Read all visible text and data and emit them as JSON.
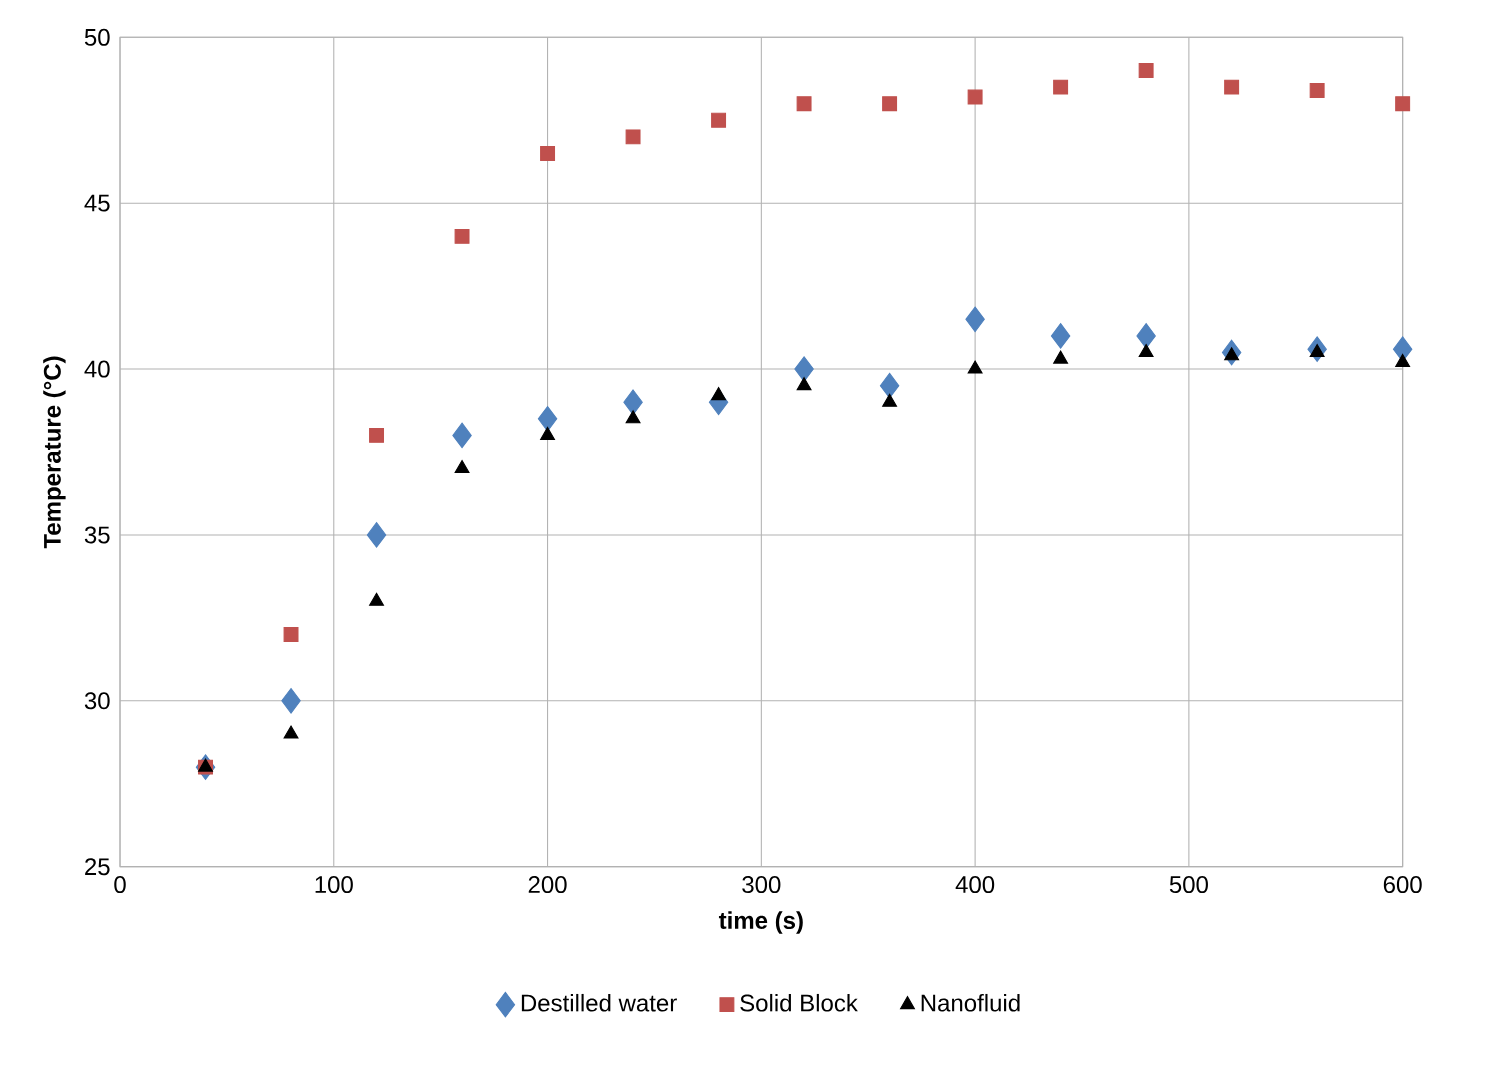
{
  "chart_data": {
    "type": "scatter",
    "xlabel": "time (s)",
    "ylabel": "Temperature (°C)",
    "x": [
      40,
      80,
      120,
      160,
      200,
      240,
      280,
      320,
      360,
      400,
      440,
      480,
      520,
      560,
      600
    ],
    "series": [
      {
        "name": "Destilled water",
        "color": "#4f81bd",
        "marker": "diamond",
        "values": [
          28,
          30,
          35,
          38,
          38.5,
          39,
          39,
          40,
          39.5,
          41.5,
          41,
          41,
          40.5,
          40.6,
          40.6
        ]
      },
      {
        "name": "Solid Block",
        "color": "#c0504d",
        "marker": "square",
        "values": [
          28,
          32,
          38,
          44,
          46.5,
          47,
          47.5,
          48,
          48,
          48.2,
          48.5,
          49,
          48.5,
          48.4,
          48
        ]
      },
      {
        "name": "Nanofluid",
        "color": "#000000",
        "marker": "triangle",
        "values": [
          28,
          29,
          33,
          37,
          38,
          38.5,
          39.2,
          39.5,
          39,
          40,
          40.3,
          40.5,
          40.4,
          40.5,
          40.2
        ]
      }
    ],
    "xlim": [
      0,
      600
    ],
    "ylim": [
      25,
      50
    ],
    "xticks": [
      0,
      100,
      200,
      300,
      400,
      500,
      600
    ],
    "yticks": [
      25,
      30,
      35,
      40,
      45,
      50
    ],
    "grid": true,
    "legend": "bottom"
  }
}
